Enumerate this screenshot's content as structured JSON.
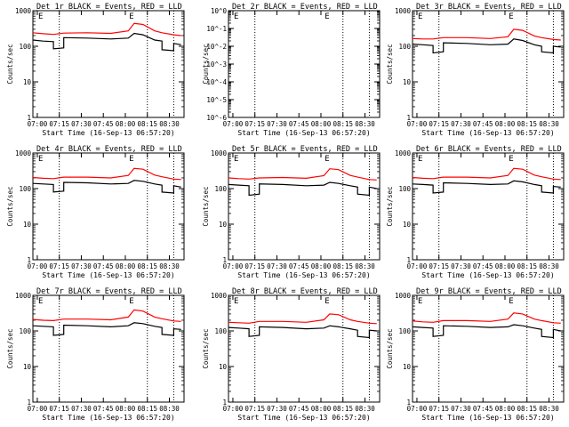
{
  "figure": {
    "title": "",
    "background": "#ffffff"
  },
  "colors": {
    "events": "#000000",
    "lld": "#ff0000",
    "axis": "#000000"
  },
  "chart_data": [
    {
      "type": "line",
      "title": "Det 1r  BLACK = Events, RED = LLD",
      "xlabel": "Start Time (16-Sep-13 06:57:20)",
      "ylabel": "Counts/sec",
      "x_ticks": [
        "07:00",
        "07:15",
        "07:30",
        "07:45",
        "08:00",
        "08:15",
        "08:30"
      ],
      "y_ticks": [
        "1",
        "10",
        "100",
        "1000"
      ],
      "ylim": [
        1,
        1000
      ],
      "yscale": "log",
      "vlines": [
        "07:15",
        "08:15",
        "08:33"
      ],
      "marks": [
        {
          "x": "07:00",
          "label": "E"
        },
        {
          "x": "08:02",
          "label": "E"
        }
      ],
      "series": [
        {
          "id": "events",
          "x": [
            "06:57",
            "07:04",
            "07:11",
            "07:11",
            "07:18",
            "07:18",
            "07:34",
            "07:50",
            "08:02",
            "08:06",
            "08:12",
            "08:20",
            "08:25",
            "08:25",
            "08:33",
            "08:33",
            "08:38"
          ],
          "values": [
            150,
            140,
            135,
            85,
            90,
            175,
            170,
            160,
            170,
            230,
            210,
            150,
            140,
            80,
            75,
            120,
            110
          ]
        },
        {
          "id": "lld",
          "x": [
            "06:57",
            "07:04",
            "07:11",
            "07:18",
            "07:34",
            "07:50",
            "08:02",
            "08:06",
            "08:12",
            "08:20",
            "08:25",
            "08:33",
            "08:38"
          ],
          "values": [
            240,
            225,
            215,
            235,
            240,
            230,
            270,
            440,
            410,
            270,
            240,
            210,
            200
          ]
        }
      ]
    },
    {
      "type": "line",
      "title": "Det 2r  BLACK = Events, RED = LLD",
      "xlabel": "Start Time (16-Sep-13 06:57:20)",
      "ylabel": "Counts/sec",
      "x_ticks": [
        "07:00",
        "07:15",
        "07:30",
        "07:45",
        "08:00",
        "08:15",
        "08:30"
      ],
      "y_ticks": [
        "10^-6",
        "10^-5",
        "10^-4",
        "10^-3",
        "10^-2",
        "10^-1",
        "10^0"
      ],
      "ylim": [
        1e-06,
        1
      ],
      "yscale": "log",
      "vlines": [
        "07:15",
        "08:15",
        "08:33"
      ],
      "marks": [
        {
          "x": "07:00",
          "label": "E"
        },
        {
          "x": "08:02",
          "label": "E"
        }
      ],
      "series": []
    },
    {
      "type": "line",
      "title": "Det 3r  BLACK = Events, RED = LLD",
      "xlabel": "Start Time (16-Sep-13 06:57:20)",
      "ylabel": "Counts/sec",
      "x_ticks": [
        "07:00",
        "07:15",
        "07:30",
        "07:45",
        "08:00",
        "08:15",
        "08:30"
      ],
      "y_ticks": [
        "1",
        "10",
        "100",
        "1000"
      ],
      "ylim": [
        1,
        1000
      ],
      "yscale": "log",
      "vlines": [
        "07:15",
        "08:15",
        "08:33"
      ],
      "marks": [
        {
          "x": "07:00",
          "label": "E"
        },
        {
          "x": "08:02",
          "label": "E"
        }
      ],
      "series": [
        {
          "id": "events",
          "x": [
            "06:57",
            "07:04",
            "07:11",
            "07:11",
            "07:18",
            "07:18",
            "07:34",
            "07:50",
            "08:02",
            "08:06",
            "08:12",
            "08:20",
            "08:25",
            "08:25",
            "08:33",
            "08:33",
            "08:38"
          ],
          "values": [
            115,
            110,
            105,
            65,
            70,
            125,
            120,
            110,
            115,
            160,
            145,
            110,
            100,
            70,
            65,
            100,
            95
          ]
        },
        {
          "id": "lld",
          "x": [
            "06:57",
            "07:04",
            "07:11",
            "07:18",
            "07:34",
            "07:50",
            "08:02",
            "08:06",
            "08:12",
            "08:20",
            "08:25",
            "08:33",
            "08:38"
          ],
          "values": [
            165,
            160,
            160,
            175,
            175,
            165,
            185,
            300,
            280,
            195,
            175,
            155,
            150
          ]
        }
      ]
    },
    {
      "type": "line",
      "title": "Det 4r  BLACK = Events, RED = LLD",
      "xlabel": "Start Time (16-Sep-13 06:57:20)",
      "ylabel": "Counts/sec",
      "x_ticks": [
        "07:00",
        "07:15",
        "07:30",
        "07:45",
        "08:00",
        "08:15",
        "08:30"
      ],
      "y_ticks": [
        "1",
        "10",
        "100",
        "1000"
      ],
      "ylim": [
        1,
        1000
      ],
      "yscale": "log",
      "vlines": [
        "07:15",
        "08:15",
        "08:33"
      ],
      "marks": [
        {
          "x": "07:00",
          "label": "E"
        },
        {
          "x": "08:02",
          "label": "E"
        }
      ],
      "series": [
        {
          "id": "events",
          "x": [
            "06:57",
            "07:04",
            "07:11",
            "07:11",
            "07:18",
            "07:18",
            "07:34",
            "07:50",
            "08:02",
            "08:06",
            "08:12",
            "08:20",
            "08:25",
            "08:25",
            "08:33",
            "08:33",
            "08:38"
          ],
          "values": [
            140,
            135,
            130,
            80,
            85,
            150,
            145,
            135,
            140,
            170,
            160,
            135,
            125,
            80,
            75,
            120,
            110
          ]
        },
        {
          "id": "lld",
          "x": [
            "06:57",
            "07:04",
            "07:11",
            "07:18",
            "07:34",
            "07:50",
            "08:02",
            "08:06",
            "08:12",
            "08:20",
            "08:25",
            "08:33",
            "08:38"
          ],
          "values": [
            205,
            195,
            190,
            210,
            210,
            200,
            235,
            370,
            350,
            240,
            215,
            185,
            180
          ]
        }
      ]
    },
    {
      "type": "line",
      "title": "Det 5r  BLACK = Events, RED = LLD",
      "xlabel": "Start Time (16-Sep-13 06:57:20)",
      "ylabel": "Counts/sec",
      "x_ticks": [
        "07:00",
        "07:15",
        "07:30",
        "07:45",
        "08:00",
        "08:15",
        "08:30"
      ],
      "y_ticks": [
        "1",
        "10",
        "100",
        "1000"
      ],
      "ylim": [
        1,
        1000
      ],
      "yscale": "log",
      "vlines": [
        "07:15",
        "08:15",
        "08:33"
      ],
      "marks": [
        {
          "x": "07:00",
          "label": "E"
        },
        {
          "x": "08:02",
          "label": "E"
        }
      ],
      "series": [
        {
          "id": "events",
          "x": [
            "06:57",
            "07:04",
            "07:11",
            "07:11",
            "07:18",
            "07:18",
            "07:34",
            "07:50",
            "08:02",
            "08:06",
            "08:12",
            "08:20",
            "08:25",
            "08:25",
            "08:33",
            "08:33",
            "08:38"
          ],
          "values": [
            130,
            125,
            120,
            65,
            70,
            135,
            130,
            120,
            125,
            150,
            140,
            120,
            110,
            70,
            65,
            110,
            100
          ]
        },
        {
          "id": "lld",
          "x": [
            "06:57",
            "07:04",
            "07:11",
            "07:18",
            "07:34",
            "07:50",
            "08:02",
            "08:06",
            "08:12",
            "08:20",
            "08:25",
            "08:33",
            "08:38"
          ],
          "values": [
            200,
            190,
            185,
            200,
            205,
            195,
            230,
            360,
            340,
            235,
            210,
            180,
            175
          ]
        }
      ]
    },
    {
      "type": "line",
      "title": "Det 6r  BLACK = Events, RED = LLD",
      "xlabel": "Start Time (16-Sep-13 06:57:20)",
      "ylabel": "Counts/sec",
      "x_ticks": [
        "07:00",
        "07:15",
        "07:30",
        "07:45",
        "08:00",
        "08:15",
        "08:30"
      ],
      "y_ticks": [
        "1",
        "10",
        "100",
        "1000"
      ],
      "ylim": [
        1,
        1000
      ],
      "yscale": "log",
      "vlines": [
        "07:15",
        "08:15",
        "08:33"
      ],
      "marks": [
        {
          "x": "07:00",
          "label": "E"
        },
        {
          "x": "08:02",
          "label": "E"
        }
      ],
      "series": [
        {
          "id": "events",
          "x": [
            "06:57",
            "07:04",
            "07:11",
            "07:11",
            "07:18",
            "07:18",
            "07:34",
            "07:50",
            "08:02",
            "08:06",
            "08:12",
            "08:20",
            "08:25",
            "08:25",
            "08:33",
            "08:33",
            "08:38"
          ],
          "values": [
            135,
            130,
            125,
            75,
            80,
            145,
            140,
            130,
            135,
            165,
            155,
            130,
            120,
            80,
            75,
            115,
            110
          ]
        },
        {
          "id": "lld",
          "x": [
            "06:57",
            "07:04",
            "07:11",
            "07:18",
            "07:34",
            "07:50",
            "08:02",
            "08:06",
            "08:12",
            "08:20",
            "08:25",
            "08:33",
            "08:38"
          ],
          "values": [
            205,
            195,
            190,
            210,
            210,
            200,
            235,
            370,
            350,
            240,
            215,
            185,
            180
          ]
        }
      ]
    },
    {
      "type": "line",
      "title": "Det 7r  BLACK = Events, RED = LLD",
      "xlabel": "Start Time (16-Sep-13 06:57:20)",
      "ylabel": "Counts/sec",
      "x_ticks": [
        "07:00",
        "07:15",
        "07:30",
        "07:45",
        "08:00",
        "08:15",
        "08:30"
      ],
      "y_ticks": [
        "1",
        "10",
        "100",
        "1000"
      ],
      "ylim": [
        1,
        1000
      ],
      "yscale": "log",
      "vlines": [
        "07:15",
        "08:15",
        "08:33"
      ],
      "marks": [
        {
          "x": "07:00",
          "label": "E"
        },
        {
          "x": "08:02",
          "label": "E"
        }
      ],
      "series": [
        {
          "id": "events",
          "x": [
            "06:57",
            "07:04",
            "07:11",
            "07:11",
            "07:18",
            "07:18",
            "07:34",
            "07:50",
            "08:02",
            "08:06",
            "08:12",
            "08:20",
            "08:25",
            "08:25",
            "08:33",
            "08:33",
            "08:38"
          ],
          "values": [
            140,
            135,
            130,
            75,
            80,
            145,
            140,
            130,
            140,
            170,
            160,
            135,
            125,
            80,
            75,
            115,
            110
          ]
        },
        {
          "id": "lld",
          "x": [
            "06:57",
            "07:04",
            "07:11",
            "07:18",
            "07:34",
            "07:50",
            "08:02",
            "08:06",
            "08:12",
            "08:20",
            "08:25",
            "08:33",
            "08:38"
          ],
          "values": [
            210,
            200,
            195,
            215,
            215,
            205,
            245,
            390,
            360,
            245,
            220,
            190,
            185
          ]
        }
      ]
    },
    {
      "type": "line",
      "title": "Det 8r  BLACK = Events, RED = LLD",
      "xlabel": "Start Time (16-Sep-13 06:57:20)",
      "ylabel": "Counts/sec",
      "x_ticks": [
        "07:00",
        "07:15",
        "07:30",
        "07:45",
        "08:00",
        "08:15",
        "08:30"
      ],
      "y_ticks": [
        "1",
        "10",
        "100",
        "1000"
      ],
      "ylim": [
        1,
        1000
      ],
      "yscale": "log",
      "vlines": [
        "07:15",
        "08:15",
        "08:33"
      ],
      "marks": [
        {
          "x": "07:00",
          "label": "E"
        },
        {
          "x": "08:02",
          "label": "E"
        }
      ],
      "series": [
        {
          "id": "events",
          "x": [
            "06:57",
            "07:04",
            "07:11",
            "07:11",
            "07:18",
            "07:18",
            "07:34",
            "07:50",
            "08:02",
            "08:06",
            "08:12",
            "08:20",
            "08:25",
            "08:25",
            "08:33",
            "08:33",
            "08:38"
          ],
          "values": [
            125,
            120,
            115,
            70,
            75,
            130,
            125,
            115,
            120,
            140,
            130,
            115,
            105,
            70,
            65,
            105,
            100
          ]
        },
        {
          "id": "lld",
          "x": [
            "06:57",
            "07:04",
            "07:11",
            "07:18",
            "07:34",
            "07:50",
            "08:02",
            "08:06",
            "08:12",
            "08:20",
            "08:25",
            "08:33",
            "08:38"
          ],
          "values": [
            175,
            170,
            165,
            185,
            185,
            175,
            205,
            300,
            285,
            205,
            185,
            165,
            160
          ]
        }
      ]
    },
    {
      "type": "line",
      "title": "Det 9r  BLACK = Events, RED = LLD",
      "xlabel": "Start Time (16-Sep-13 06:57:20)",
      "ylabel": "Counts/sec",
      "x_ticks": [
        "07:00",
        "07:15",
        "07:30",
        "07:45",
        "08:00",
        "08:15",
        "08:30"
      ],
      "y_ticks": [
        "1",
        "10",
        "100",
        "1000"
      ],
      "ylim": [
        1,
        1000
      ],
      "yscale": "log",
      "vlines": [
        "07:15",
        "08:15",
        "08:33"
      ],
      "marks": [
        {
          "x": "07:00",
          "label": "E"
        },
        {
          "x": "08:02",
          "label": "E"
        }
      ],
      "series": [
        {
          "id": "events",
          "x": [
            "06:57",
            "07:04",
            "07:11",
            "07:11",
            "07:18",
            "07:18",
            "07:34",
            "07:50",
            "08:02",
            "08:06",
            "08:12",
            "08:20",
            "08:25",
            "08:25",
            "08:33",
            "08:33",
            "08:38"
          ],
          "values": [
            130,
            125,
            120,
            70,
            75,
            140,
            135,
            125,
            130,
            150,
            140,
            120,
            110,
            70,
            65,
            110,
            100
          ]
        },
        {
          "id": "lld",
          "x": [
            "06:57",
            "07:04",
            "07:11",
            "07:18",
            "07:34",
            "07:50",
            "08:02",
            "08:06",
            "08:12",
            "08:20",
            "08:25",
            "08:33",
            "08:38"
          ],
          "values": [
            190,
            180,
            175,
            195,
            195,
            185,
            215,
            320,
            300,
            215,
            195,
            170,
            165
          ]
        }
      ]
    }
  ]
}
